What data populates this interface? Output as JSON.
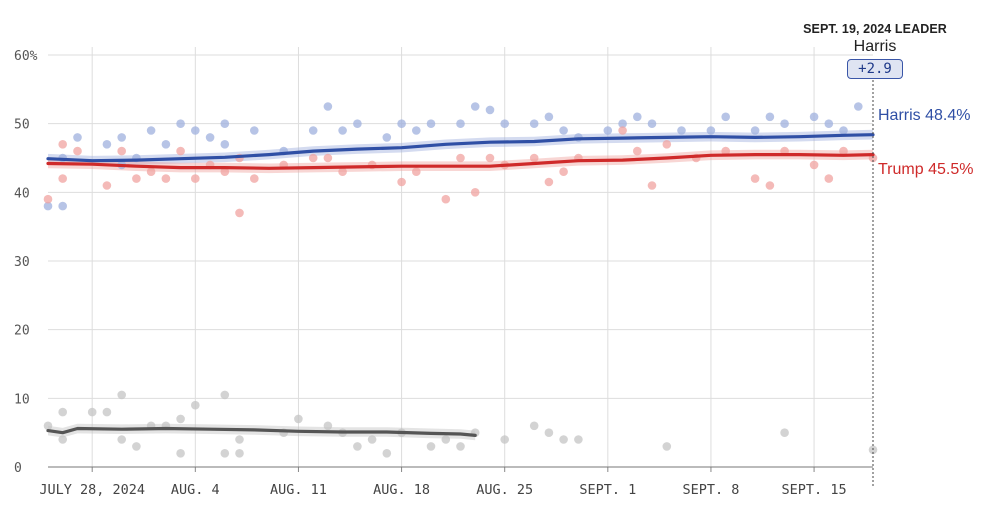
{
  "leader": {
    "title": "SEPT. 19, 2024 LEADER",
    "name": "Harris",
    "margin": "+2.9"
  },
  "end_labels": {
    "harris": "Harris 48.4%",
    "trump": "Trump 45.5%"
  },
  "colors": {
    "harris": "#2f4fa5",
    "trump": "#cf2a2a",
    "other": "#555555",
    "harris_dot": "#9fb0de",
    "trump_dot": "#f0a3a0",
    "other_dot": "#c4c4c4",
    "grid": "#dddddd"
  },
  "chart_data": {
    "type": "line",
    "title": "",
    "xlabel": "",
    "ylabel": "",
    "ylim": [
      0,
      60
    ],
    "y_ticks": [
      0,
      10,
      20,
      30,
      40,
      50,
      60
    ],
    "y_tick_labels": [
      "0",
      "10",
      "20",
      "30",
      "40",
      "50",
      "60%"
    ],
    "x_range": [
      "2024-07-25",
      "2024-09-19"
    ],
    "x_ticks": [
      {
        "date": "2024-07-28",
        "label": "JULY 28, 2024"
      },
      {
        "date": "2024-08-04",
        "label": "AUG. 4"
      },
      {
        "date": "2024-08-11",
        "label": "AUG. 11"
      },
      {
        "date": "2024-08-18",
        "label": "AUG. 18"
      },
      {
        "date": "2024-08-25",
        "label": "AUG. 25"
      },
      {
        "date": "2024-09-01",
        "label": "SEPT. 1"
      },
      {
        "date": "2024-09-08",
        "label": "SEPT. 8"
      },
      {
        "date": "2024-09-15",
        "label": "SEPT. 15"
      }
    ],
    "grid": true,
    "series": [
      {
        "name": "Harris",
        "trend": [
          [
            "2024-07-25",
            44.9
          ],
          [
            "2024-07-28",
            44.6
          ],
          [
            "2024-07-31",
            44.7
          ],
          [
            "2024-08-03",
            44.9
          ],
          [
            "2024-08-06",
            45.1
          ],
          [
            "2024-08-09",
            45.5
          ],
          [
            "2024-08-12",
            46.0
          ],
          [
            "2024-08-15",
            46.3
          ],
          [
            "2024-08-18",
            46.5
          ],
          [
            "2024-08-21",
            47.0
          ],
          [
            "2024-08-24",
            47.3
          ],
          [
            "2024-08-27",
            47.4
          ],
          [
            "2024-08-30",
            47.8
          ],
          [
            "2024-09-02",
            47.9
          ],
          [
            "2024-09-05",
            48.0
          ],
          [
            "2024-09-08",
            48.1
          ],
          [
            "2024-09-11",
            48.0
          ],
          [
            "2024-09-14",
            48.1
          ],
          [
            "2024-09-17",
            48.3
          ],
          [
            "2024-09-19",
            48.4
          ]
        ],
        "polls": [
          [
            "2024-07-25",
            38
          ],
          [
            "2024-07-26",
            38
          ],
          [
            "2024-07-26",
            45
          ],
          [
            "2024-07-27",
            48
          ],
          [
            "2024-07-29",
            47
          ],
          [
            "2024-07-30",
            44
          ],
          [
            "2024-07-30",
            48
          ],
          [
            "2024-07-31",
            45
          ],
          [
            "2024-08-01",
            49
          ],
          [
            "2024-08-02",
            47
          ],
          [
            "2024-08-03",
            50
          ],
          [
            "2024-08-04",
            49
          ],
          [
            "2024-08-05",
            48
          ],
          [
            "2024-08-06",
            50
          ],
          [
            "2024-08-06",
            47
          ],
          [
            "2024-08-08",
            49
          ],
          [
            "2024-08-10",
            46
          ],
          [
            "2024-08-12",
            49
          ],
          [
            "2024-08-13",
            52.5
          ],
          [
            "2024-08-14",
            49
          ],
          [
            "2024-08-15",
            50
          ],
          [
            "2024-08-17",
            48
          ],
          [
            "2024-08-18",
            50
          ],
          [
            "2024-08-19",
            49
          ],
          [
            "2024-08-20",
            50
          ],
          [
            "2024-08-22",
            50
          ],
          [
            "2024-08-23",
            52.5
          ],
          [
            "2024-08-24",
            52
          ],
          [
            "2024-08-25",
            50
          ],
          [
            "2024-08-27",
            50
          ],
          [
            "2024-08-28",
            51
          ],
          [
            "2024-08-29",
            49
          ],
          [
            "2024-08-30",
            48
          ],
          [
            "2024-09-01",
            49
          ],
          [
            "2024-09-02",
            50
          ],
          [
            "2024-09-03",
            51
          ],
          [
            "2024-09-04",
            50
          ],
          [
            "2024-09-06",
            49
          ],
          [
            "2024-09-08",
            49
          ],
          [
            "2024-09-09",
            51
          ],
          [
            "2024-09-11",
            49
          ],
          [
            "2024-09-12",
            51
          ],
          [
            "2024-09-13",
            50
          ],
          [
            "2024-09-15",
            51
          ],
          [
            "2024-09-16",
            50
          ],
          [
            "2024-09-17",
            49
          ],
          [
            "2024-09-18",
            52.5
          ]
        ]
      },
      {
        "name": "Trump",
        "trend": [
          [
            "2024-07-25",
            44.2
          ],
          [
            "2024-07-28",
            44.1
          ],
          [
            "2024-07-31",
            43.8
          ],
          [
            "2024-08-03",
            43.6
          ],
          [
            "2024-08-06",
            43.6
          ],
          [
            "2024-08-09",
            43.5
          ],
          [
            "2024-08-12",
            43.6
          ],
          [
            "2024-08-15",
            43.7
          ],
          [
            "2024-08-18",
            43.8
          ],
          [
            "2024-08-21",
            43.8
          ],
          [
            "2024-08-24",
            43.8
          ],
          [
            "2024-08-27",
            44.2
          ],
          [
            "2024-08-30",
            44.6
          ],
          [
            "2024-09-02",
            44.7
          ],
          [
            "2024-09-05",
            45.0
          ],
          [
            "2024-09-08",
            45.4
          ],
          [
            "2024-09-11",
            45.5
          ],
          [
            "2024-09-14",
            45.5
          ],
          [
            "2024-09-17",
            45.4
          ],
          [
            "2024-09-19",
            45.5
          ]
        ],
        "polls": [
          [
            "2024-07-25",
            39
          ],
          [
            "2024-07-26",
            42
          ],
          [
            "2024-07-26",
            47
          ],
          [
            "2024-07-27",
            46
          ],
          [
            "2024-07-29",
            41
          ],
          [
            "2024-07-30",
            46
          ],
          [
            "2024-07-31",
            42
          ],
          [
            "2024-08-01",
            43
          ],
          [
            "2024-08-02",
            42
          ],
          [
            "2024-08-03",
            46
          ],
          [
            "2024-08-04",
            42
          ],
          [
            "2024-08-05",
            44
          ],
          [
            "2024-08-06",
            43
          ],
          [
            "2024-08-07",
            37
          ],
          [
            "2024-08-07",
            45
          ],
          [
            "2024-08-08",
            42
          ],
          [
            "2024-08-10",
            44
          ],
          [
            "2024-08-12",
            45
          ],
          [
            "2024-08-13",
            45
          ],
          [
            "2024-08-14",
            43
          ],
          [
            "2024-08-16",
            44
          ],
          [
            "2024-08-18",
            41.5
          ],
          [
            "2024-08-19",
            43
          ],
          [
            "2024-08-21",
            39
          ],
          [
            "2024-08-22",
            45
          ],
          [
            "2024-08-23",
            40
          ],
          [
            "2024-08-24",
            45
          ],
          [
            "2024-08-25",
            44
          ],
          [
            "2024-08-27",
            45
          ],
          [
            "2024-08-28",
            41.5
          ],
          [
            "2024-08-29",
            43
          ],
          [
            "2024-08-30",
            45
          ],
          [
            "2024-09-02",
            49
          ],
          [
            "2024-09-03",
            46
          ],
          [
            "2024-09-04",
            41
          ],
          [
            "2024-09-05",
            47
          ],
          [
            "2024-09-07",
            45
          ],
          [
            "2024-09-09",
            46
          ],
          [
            "2024-09-11",
            42
          ],
          [
            "2024-09-12",
            41
          ],
          [
            "2024-09-13",
            46
          ],
          [
            "2024-09-15",
            44
          ],
          [
            "2024-09-16",
            42
          ],
          [
            "2024-09-17",
            46
          ],
          [
            "2024-09-19",
            45
          ]
        ]
      },
      {
        "name": "",
        "trend": [
          [
            "2024-07-25",
            5.3
          ],
          [
            "2024-07-26",
            5.0
          ],
          [
            "2024-07-27",
            5.6
          ],
          [
            "2024-07-30",
            5.5
          ],
          [
            "2024-08-02",
            5.6
          ],
          [
            "2024-08-05",
            5.5
          ],
          [
            "2024-08-08",
            5.4
          ],
          [
            "2024-08-11",
            5.2
          ],
          [
            "2024-08-14",
            5.1
          ],
          [
            "2024-08-17",
            5.1
          ],
          [
            "2024-08-20",
            4.9
          ],
          [
            "2024-08-22",
            4.8
          ],
          [
            "2024-08-23",
            4.6
          ]
        ],
        "polls": [
          [
            "2024-07-25",
            6
          ],
          [
            "2024-07-26",
            4
          ],
          [
            "2024-07-26",
            8
          ],
          [
            "2024-07-28",
            8
          ],
          [
            "2024-07-29",
            8
          ],
          [
            "2024-07-30",
            10.5
          ],
          [
            "2024-07-30",
            4
          ],
          [
            "2024-07-31",
            3
          ],
          [
            "2024-08-01",
            6
          ],
          [
            "2024-08-02",
            6
          ],
          [
            "2024-08-03",
            2
          ],
          [
            "2024-08-03",
            7
          ],
          [
            "2024-08-04",
            9
          ],
          [
            "2024-08-06",
            10.5
          ],
          [
            "2024-08-06",
            2
          ],
          [
            "2024-08-07",
            2
          ],
          [
            "2024-08-07",
            4
          ],
          [
            "2024-08-10",
            5
          ],
          [
            "2024-08-11",
            7
          ],
          [
            "2024-08-13",
            6
          ],
          [
            "2024-08-14",
            5
          ],
          [
            "2024-08-15",
            3
          ],
          [
            "2024-08-16",
            4
          ],
          [
            "2024-08-17",
            2
          ],
          [
            "2024-08-18",
            5
          ],
          [
            "2024-08-20",
            3
          ],
          [
            "2024-08-21",
            4
          ],
          [
            "2024-08-22",
            3
          ],
          [
            "2024-08-23",
            5
          ],
          [
            "2024-08-25",
            4
          ],
          [
            "2024-08-27",
            6
          ],
          [
            "2024-08-28",
            5
          ],
          [
            "2024-08-29",
            4
          ],
          [
            "2024-08-30",
            4
          ],
          [
            "2024-09-05",
            3
          ],
          [
            "2024-09-13",
            5
          ],
          [
            "2024-09-19",
            2.5
          ]
        ]
      }
    ]
  }
}
